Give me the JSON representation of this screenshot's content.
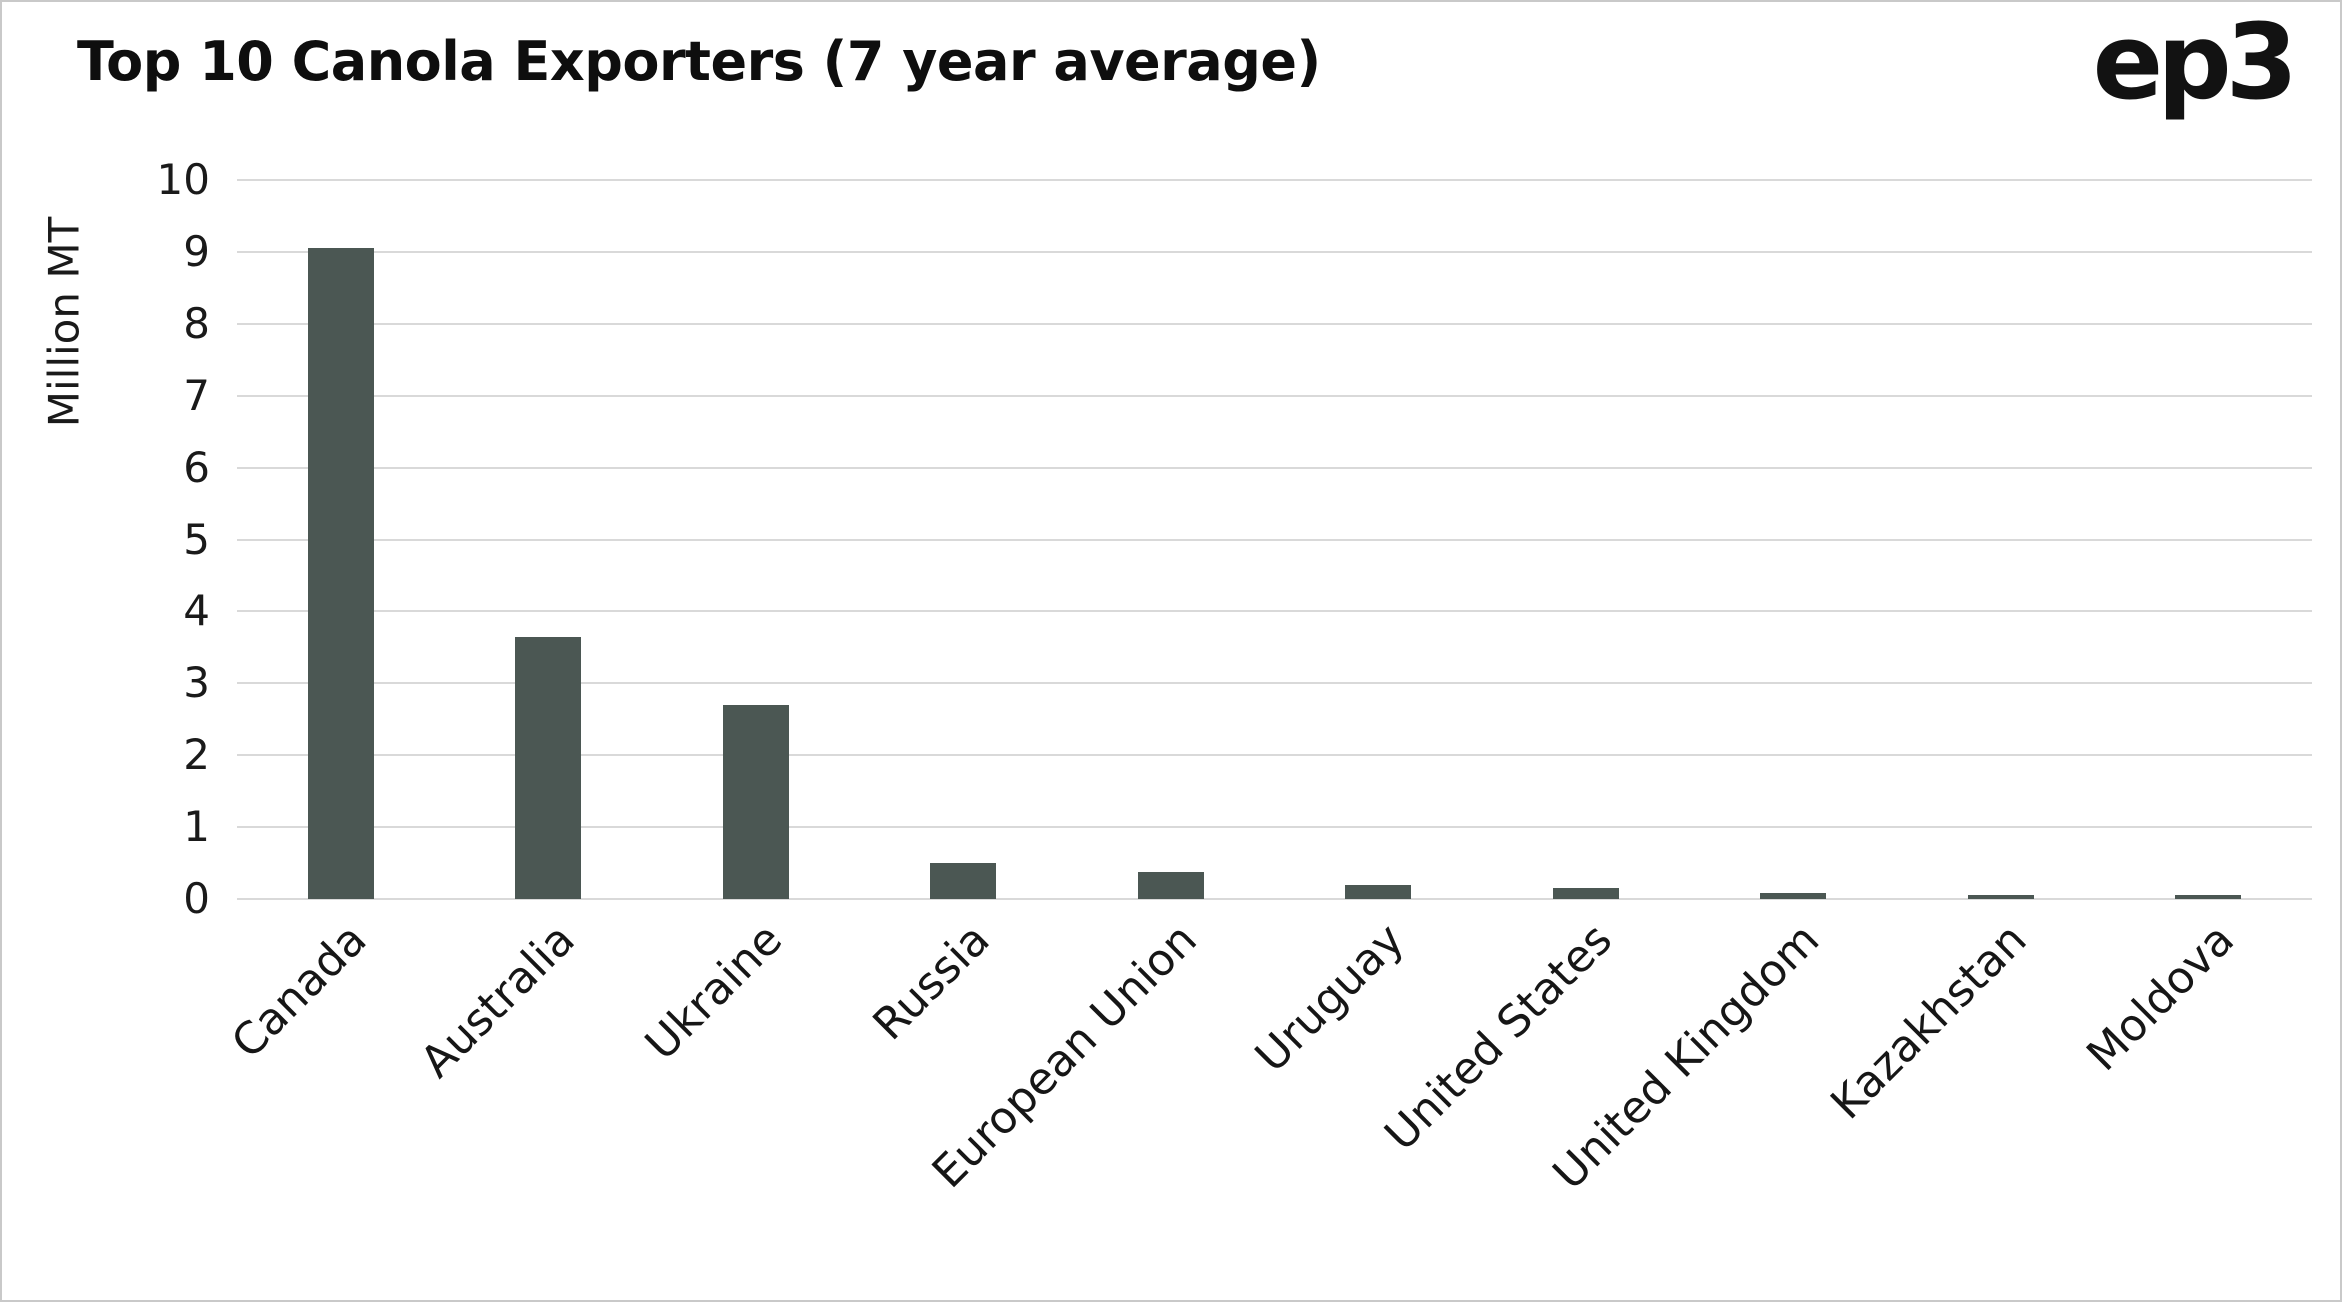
{
  "logo": "ep3",
  "chart_data": {
    "type": "bar",
    "title": "Top 10 Canola Exporters (7 year average)",
    "xlabel": "",
    "ylabel": "Million MT",
    "categories": [
      "Canada",
      "Australia",
      "Ukraine",
      "Russia",
      "European Union",
      "Uruguay",
      "United States",
      "United Kingdom",
      "Kazakhstan",
      "Moldova"
    ],
    "values": [
      9.05,
      3.65,
      2.7,
      0.5,
      0.38,
      0.2,
      0.15,
      0.08,
      0.06,
      0.05
    ],
    "ylim": [
      0,
      10
    ],
    "yticks": [
      0,
      1,
      2,
      3,
      4,
      5,
      6,
      7,
      8,
      9,
      10
    ],
    "grid": true,
    "legend_position": "none",
    "bar_color": "#4b5753",
    "grid_color": "#d9d9d9"
  }
}
